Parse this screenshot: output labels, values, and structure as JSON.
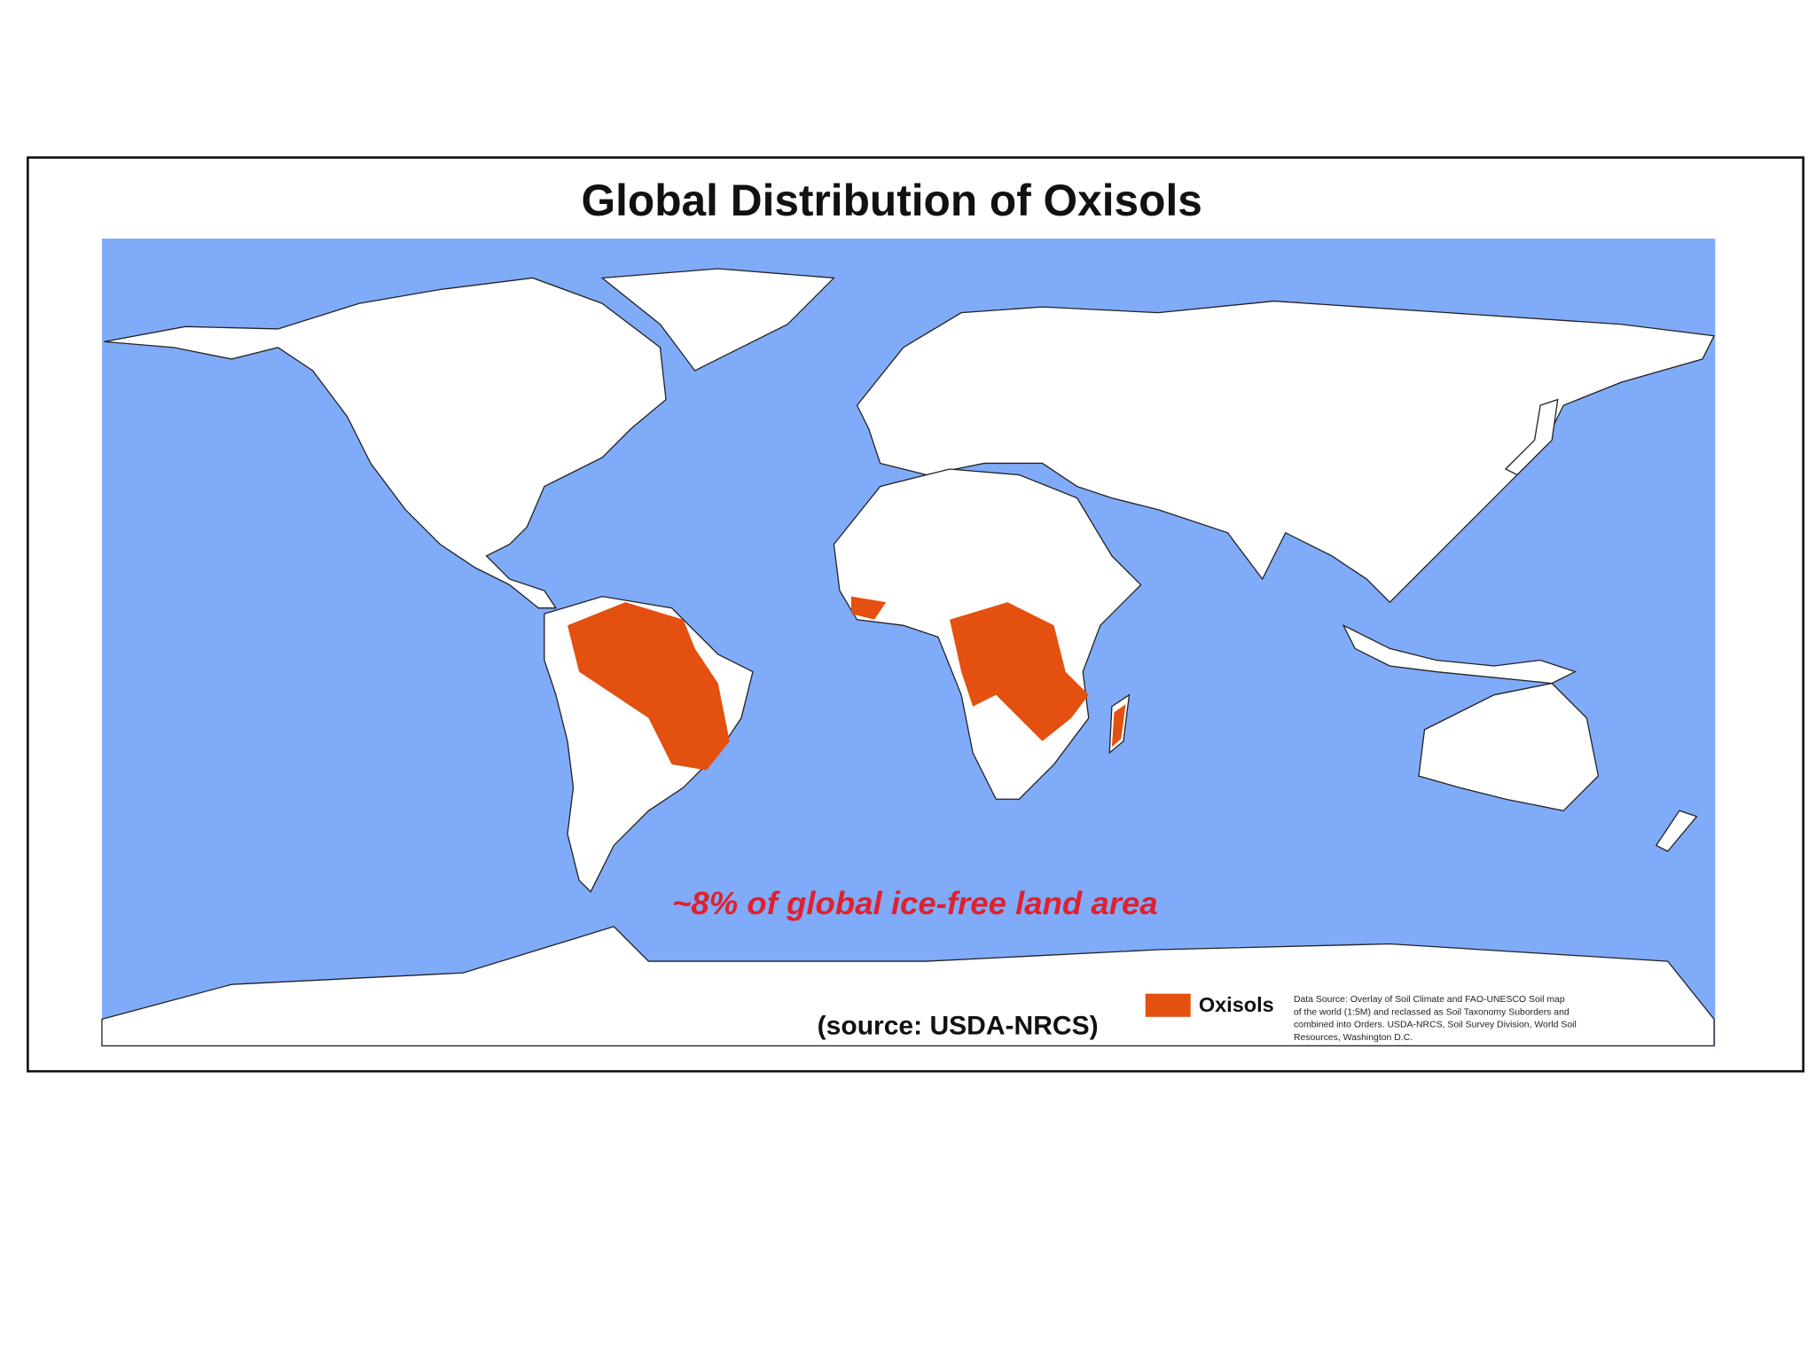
{
  "title": "Global Distribution of Oxisols",
  "annotation": "~8% of global ice-free land area",
  "source": "(source: USDA-NRCS)",
  "legend": {
    "label": "Oxisols"
  },
  "data_source_note": [
    "Data Source: Overlay of Soil Climate and FAO-UNESCO Soil map",
    "of the world (1:5M) and reclassed as Soil Taxonomy Suborders and",
    "combined into Orders. USDA-NRCS, Soil Survey Division, World Soil",
    "Resources, Washington D.C."
  ]
}
